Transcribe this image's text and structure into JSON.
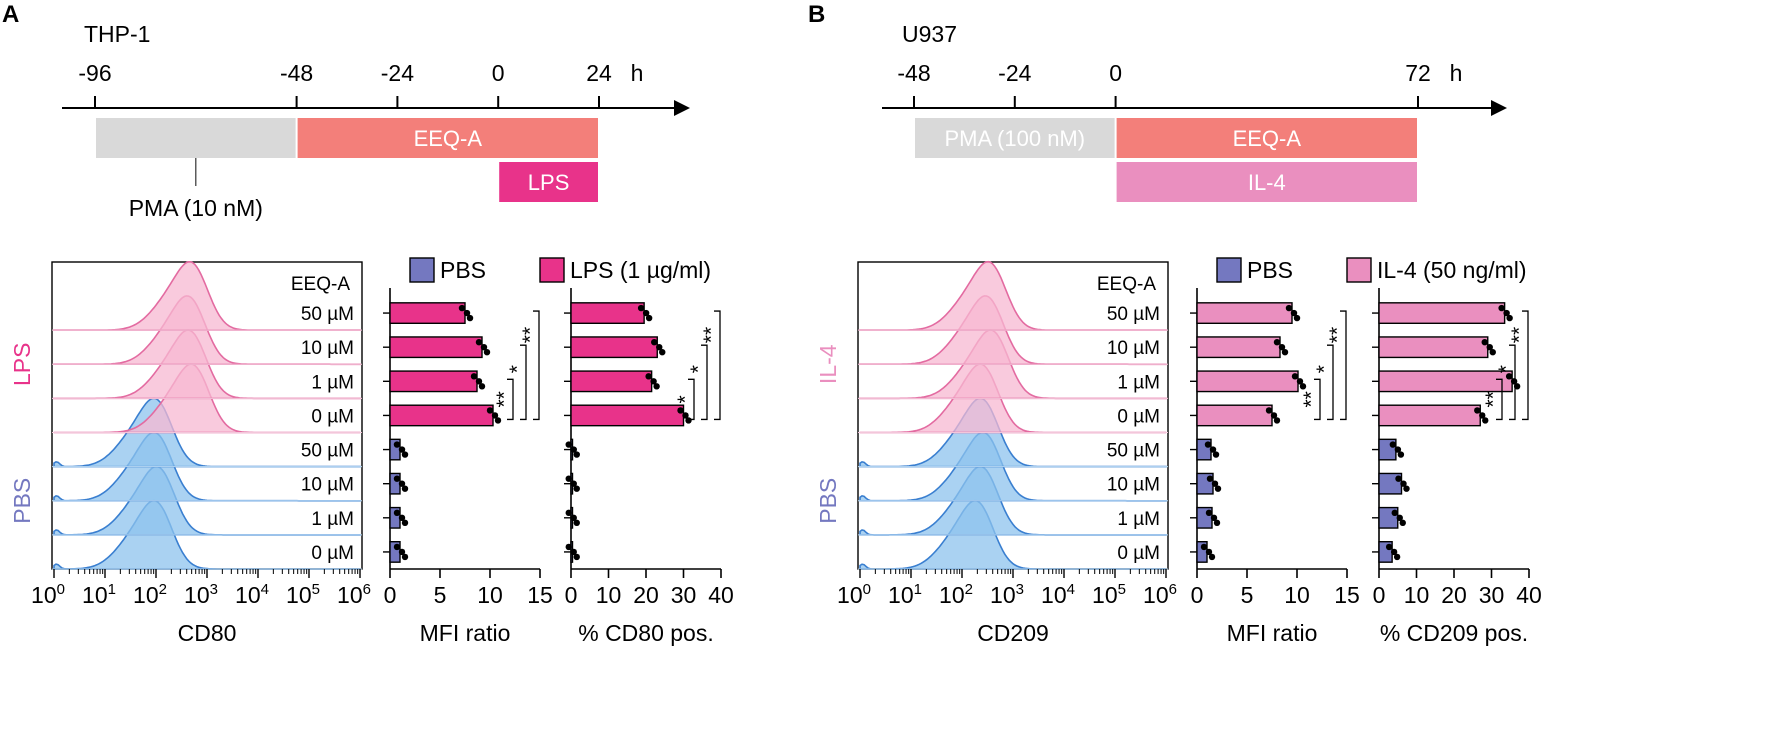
{
  "colors": {
    "pbs": "#7478c0",
    "lps": "#e8338a",
    "il4": "#ea8fbf",
    "eeqa": "#f37f7a",
    "pma": "#d9d9d9",
    "hist_pbs_fill": "#8ec3ee",
    "hist_pbs_line": "#3a7fd0",
    "hist_lps_fill": "#f7b8d2",
    "hist_lps_line": "#e36ba1"
  },
  "panels": [
    {
      "letter": "A",
      "cell_line": "THP-1",
      "timeline": {
        "ticks": [
          "-96",
          "-48",
          "-24",
          "0",
          "24"
        ],
        "tick_values": [
          -96,
          -48,
          -24,
          0,
          24
        ],
        "range": [
          -108,
          48
        ],
        "unit": "h",
        "bars": [
          {
            "name": "pma",
            "label": "",
            "start": -96,
            "end": -48,
            "row": 0
          },
          {
            "name": "eeqa",
            "label": "EEQ-A",
            "start": -48,
            "end": 24,
            "row": 0
          },
          {
            "name": "stim",
            "label": "LPS",
            "start": 0,
            "end": 24,
            "row": 1
          }
        ],
        "callout": "PMA (10 nM)",
        "callout_at": -72
      },
      "stimulus_label": "LPS",
      "control_label": "PBS",
      "header": "EEQ-A",
      "rows": [
        "50 µM",
        "10 µM",
        "1 µM",
        "0 µM",
        "50 µM",
        "10 µM",
        "1 µM",
        "0 µM"
      ],
      "histogram_peaks_log10": [
        2.75,
        2.7,
        2.72,
        2.78,
        2.05,
        2.05,
        2.1,
        2.05
      ],
      "histogram": {
        "xlabel": "CD80",
        "tick_exponents": [
          "0",
          "1",
          "2",
          "3",
          "4",
          "5",
          "6"
        ]
      },
      "legend": [
        "PBS",
        "LPS (1 µg/ml)"
      ],
      "mfi": {
        "xlabel": "MFI ratio",
        "ticks": [
          "0",
          "5",
          "10",
          "15"
        ],
        "xlim": [
          0,
          15
        ],
        "stim_values": [
          7.5,
          9.2,
          8.7,
          10.3
        ],
        "control_values": [
          1.0,
          1.0,
          1.0,
          1.0
        ],
        "stars": [
          "**",
          "*",
          "**"
        ]
      },
      "pct": {
        "xlabel": "% CD80 pos.",
        "ticks": [
          "0",
          "10",
          "20",
          "30",
          "40"
        ],
        "xlim": [
          0,
          40
        ],
        "stim_values": [
          19.5,
          23.0,
          21.5,
          30.0
        ],
        "control_values": [
          0.2,
          0.2,
          0.2,
          0.2
        ],
        "stars": [
          "*",
          "*",
          "**"
        ]
      }
    },
    {
      "letter": "B",
      "cell_line": "U937",
      "timeline": {
        "ticks": [
          "-48",
          "-24",
          "0",
          "72"
        ],
        "tick_values": [
          -48,
          -24,
          0,
          72
        ],
        "range": [
          -54,
          88
        ],
        "unit": "h",
        "bars": [
          {
            "name": "pma",
            "label": "PMA (100 nM)",
            "start": -48,
            "end": 0,
            "row": 0
          },
          {
            "name": "eeqa",
            "label": "EEQ-A",
            "start": 0,
            "end": 72,
            "row": 0
          },
          {
            "name": "stim",
            "label": "IL-4",
            "start": 0,
            "end": 72,
            "row": 1
          }
        ],
        "callout": "",
        "callout_at": null
      },
      "stimulus_label": "IL-4",
      "control_label": "PBS",
      "header": "EEQ-A",
      "rows": [
        "50 µM",
        "10 µM",
        "1 µM",
        "0 µM",
        "50 µM",
        "10 µM",
        "1 µM",
        "0 µM"
      ],
      "histogram_peaks_log10": [
        2.6,
        2.55,
        2.65,
        2.45,
        2.45,
        2.5,
        2.45,
        2.35
      ],
      "histogram": {
        "xlabel": "CD209",
        "tick_exponents": [
          "0",
          "1",
          "2",
          "3",
          "4",
          "5",
          "6"
        ]
      },
      "legend": [
        "PBS",
        "IL-4 (50 ng/ml)"
      ],
      "mfi": {
        "xlabel": "MFI ratio",
        "ticks": [
          "0",
          "5",
          "10",
          "15"
        ],
        "xlim": [
          0,
          15
        ],
        "stim_values": [
          9.5,
          8.3,
          10.1,
          7.5
        ],
        "control_values": [
          1.4,
          1.6,
          1.5,
          1.0
        ],
        "stars": [
          "**",
          "*",
          "**"
        ]
      },
      "pct": {
        "xlabel": "% CD209 pos.",
        "ticks": [
          "0",
          "10",
          "20",
          "30",
          "40"
        ],
        "xlim": [
          0,
          40
        ],
        "stim_values": [
          33.5,
          29.0,
          35.5,
          27.0
        ],
        "control_values": [
          4.5,
          6.0,
          5.0,
          3.5
        ],
        "stars": [
          "**",
          "*",
          "**"
        ]
      }
    }
  ]
}
